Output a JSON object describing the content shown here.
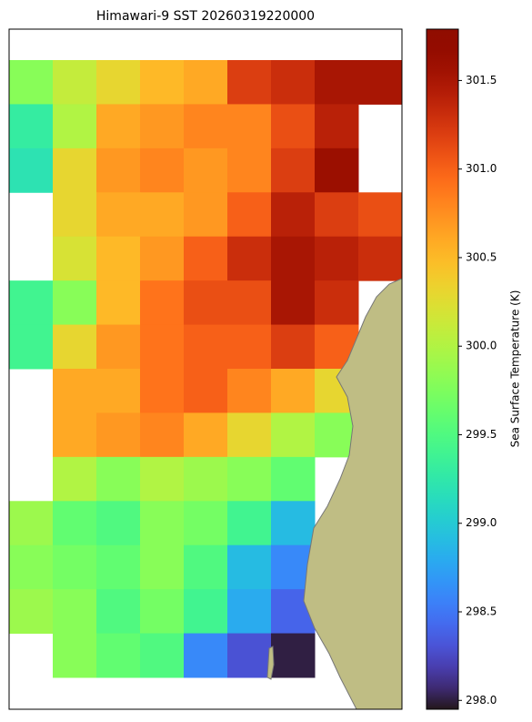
{
  "chart_data": {
    "type": "heatmap",
    "title": "Himawari-9 SST 20260319220000",
    "colorbar_label": "Sea Surface Temperature (K)",
    "colormap": "turbo",
    "clim": [
      297.95,
      301.79
    ],
    "cticks": [
      298.0,
      298.5,
      299.0,
      299.5,
      300.0,
      300.5,
      301.0,
      301.5
    ],
    "values": [
      [
        299.8,
        300.1,
        300.3,
        300.5,
        300.6,
        301.2,
        301.3,
        301.5,
        301.5
      ],
      [
        299.3,
        300.0,
        300.6,
        300.7,
        300.8,
        300.8,
        301.1,
        301.4,
        null
      ],
      [
        299.2,
        300.3,
        300.7,
        300.8,
        300.7,
        300.8,
        301.2,
        301.6,
        null
      ],
      [
        null,
        300.3,
        300.6,
        300.6,
        300.7,
        301.0,
        301.4,
        301.2,
        301.1
      ],
      [
        null,
        300.2,
        300.5,
        300.7,
        301.0,
        301.3,
        301.5,
        301.4,
        301.3
      ],
      [
        299.4,
        299.8,
        300.5,
        300.9,
        301.1,
        301.1,
        301.5,
        301.3,
        null
      ],
      [
        299.4,
        300.3,
        300.7,
        300.9,
        301.0,
        301.0,
        301.2,
        301.0,
        null
      ],
      [
        null,
        300.6,
        300.6,
        300.9,
        301.0,
        300.8,
        300.6,
        300.3,
        null
      ],
      [
        null,
        300.6,
        300.7,
        300.8,
        300.6,
        300.3,
        300.0,
        299.8,
        null
      ],
      [
        null,
        300.0,
        299.8,
        300.0,
        299.9,
        299.8,
        299.6,
        null,
        null
      ],
      [
        299.9,
        299.6,
        299.5,
        299.8,
        299.7,
        299.4,
        298.9,
        null,
        null
      ],
      [
        299.8,
        299.7,
        299.6,
        299.8,
        299.5,
        298.9,
        298.6,
        null,
        null
      ],
      [
        299.9,
        299.8,
        299.5,
        299.7,
        299.4,
        298.8,
        298.4,
        null,
        null
      ],
      [
        null,
        299.8,
        299.6,
        299.5,
        298.6,
        298.3,
        298.0,
        null,
        null
      ]
    ]
  }
}
